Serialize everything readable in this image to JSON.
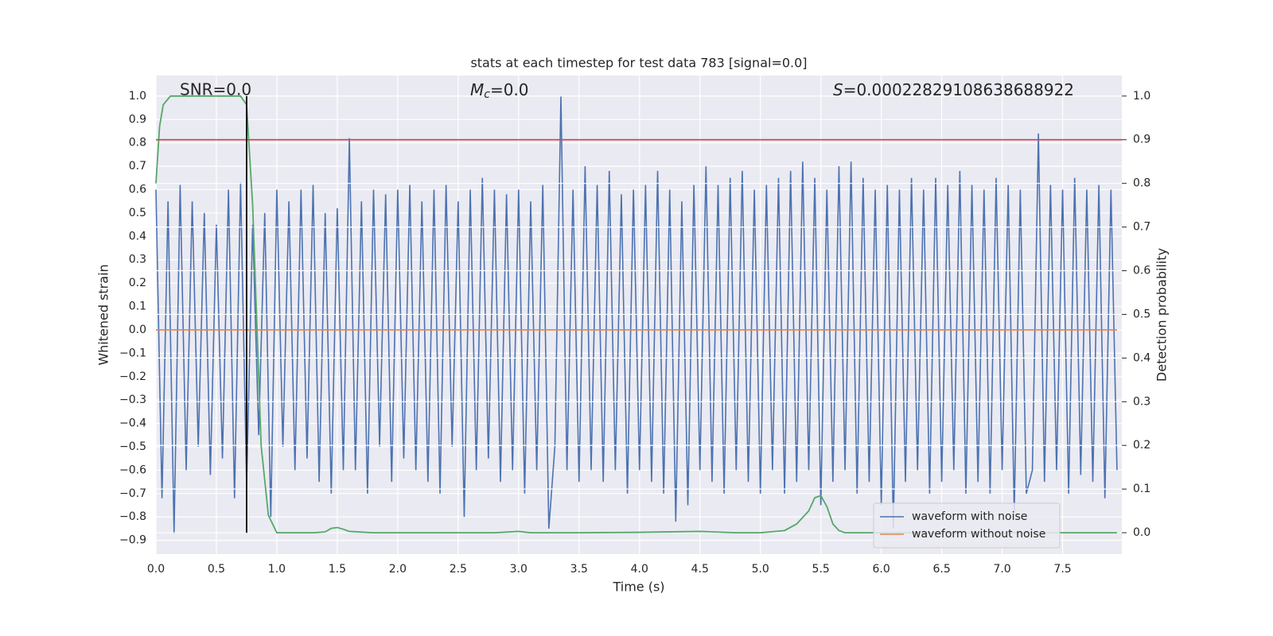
{
  "chart_data": {
    "type": "line",
    "title": "stats at each timestep for test data 783 [signal=0.0]",
    "xlabel": "Time (s)",
    "ylabel": "Whitened strain",
    "y2label": "Detection probability",
    "annotations": [
      {
        "text": "SNR=0.0"
      },
      {
        "symbol": "M",
        "subscript": "c",
        "text": "=0.0"
      },
      {
        "symbol": "S",
        "text": "=0.00022829108638688922"
      }
    ],
    "xlim": [
      0,
      7.99
    ],
    "ylim": [
      -0.959,
      1.088
    ],
    "y2lim": [
      -0.049,
      1.047
    ],
    "xticks": [
      {
        "value": 0,
        "label": "0.0"
      },
      {
        "value": 0.5,
        "label": "0.5"
      },
      {
        "value": 1,
        "label": "1.0"
      },
      {
        "value": 1.5,
        "label": "1.5"
      },
      {
        "value": 2,
        "label": "2.0"
      },
      {
        "value": 2.5,
        "label": "2.5"
      },
      {
        "value": 3,
        "label": "3.0"
      },
      {
        "value": 3.5,
        "label": "3.5"
      },
      {
        "value": 4,
        "label": "4.0"
      },
      {
        "value": 4.5,
        "label": "4.5"
      },
      {
        "value": 5,
        "label": "5.0"
      },
      {
        "value": 5.5,
        "label": "5.5"
      },
      {
        "value": 6,
        "label": "6.0"
      },
      {
        "value": 6.5,
        "label": "6.5"
      },
      {
        "value": 7,
        "label": "7.0"
      },
      {
        "value": 7.5,
        "label": "7.5"
      }
    ],
    "yticks": [
      {
        "value": -0.9,
        "label": "−0.9"
      },
      {
        "value": -0.8,
        "label": "−0.8"
      },
      {
        "value": -0.7,
        "label": "−0.7"
      },
      {
        "value": -0.6,
        "label": "−0.6"
      },
      {
        "value": -0.5,
        "label": "−0.5"
      },
      {
        "value": -0.4,
        "label": "−0.4"
      },
      {
        "value": -0.3,
        "label": "−0.3"
      },
      {
        "value": -0.2,
        "label": "−0.2"
      },
      {
        "value": -0.1,
        "label": "−0.1"
      },
      {
        "value": 0,
        "label": "0.0"
      },
      {
        "value": 0.1,
        "label": "0.1"
      },
      {
        "value": 0.2,
        "label": "0.2"
      },
      {
        "value": 0.3,
        "label": "0.3"
      },
      {
        "value": 0.4,
        "label": "0.4"
      },
      {
        "value": 0.5,
        "label": "0.5"
      },
      {
        "value": 0.6,
        "label": "0.6"
      },
      {
        "value": 0.7,
        "label": "0.7"
      },
      {
        "value": 0.8,
        "label": "0.8"
      },
      {
        "value": 0.9,
        "label": "0.9"
      },
      {
        "value": 1,
        "label": "1.0"
      }
    ],
    "y2ticks": [
      {
        "value": 0,
        "label": "0.0"
      },
      {
        "value": 0.1,
        "label": "0.1"
      },
      {
        "value": 0.2,
        "label": "0.2"
      },
      {
        "value": 0.3,
        "label": "0.3"
      },
      {
        "value": 0.4,
        "label": "0.4"
      },
      {
        "value": 0.5,
        "label": "0.5"
      },
      {
        "value": 0.6,
        "label": "0.6"
      },
      {
        "value": 0.7,
        "label": "0.7"
      },
      {
        "value": 0.8,
        "label": "0.8"
      },
      {
        "value": 0.9,
        "label": "0.9"
      },
      {
        "value": 1,
        "label": "1.0"
      }
    ],
    "grid": true,
    "legend": "lower right",
    "series": [
      {
        "name": "waveform with noise",
        "color": "#4c72b0",
        "x": [
          0,
          0.05,
          0.1,
          0.15,
          0.2,
          0.25,
          0.3,
          0.35,
          0.4,
          0.45,
          0.5,
          0.55,
          0.6,
          0.65,
          0.7,
          0.75,
          0.8,
          0.85,
          0.9,
          0.95,
          1,
          1.05,
          1.1,
          1.15,
          1.2,
          1.25,
          1.3,
          1.35,
          1.4,
          1.45,
          1.5,
          1.55,
          1.6,
          1.65,
          1.7,
          1.75,
          1.8,
          1.85,
          1.9,
          1.95,
          2,
          2.05,
          2.1,
          2.15,
          2.2,
          2.25,
          2.3,
          2.35,
          2.4,
          2.45,
          2.5,
          2.55,
          2.6,
          2.65,
          2.7,
          2.75,
          2.8,
          2.85,
          2.9,
          2.95,
          3,
          3.05,
          3.1,
          3.15,
          3.2,
          3.25,
          3.3,
          3.35,
          3.4,
          3.45,
          3.5,
          3.55,
          3.6,
          3.65,
          3.7,
          3.75,
          3.8,
          3.85,
          3.9,
          3.95,
          4,
          4.05,
          4.1,
          4.15,
          4.2,
          4.25,
          4.3,
          4.35,
          4.4,
          4.45,
          4.5,
          4.55,
          4.6,
          4.65,
          4.7,
          4.75,
          4.8,
          4.85,
          4.9,
          4.95,
          5,
          5.05,
          5.1,
          5.15,
          5.2,
          5.25,
          5.3,
          5.35,
          5.4,
          5.45,
          5.5,
          5.55,
          5.6,
          5.65,
          5.7,
          5.75,
          5.8,
          5.85,
          5.9,
          5.95,
          6,
          6.05,
          6.1,
          6.15,
          6.2,
          6.25,
          6.3,
          6.35,
          6.4,
          6.45,
          6.5,
          6.55,
          6.6,
          6.65,
          6.7,
          6.75,
          6.8,
          6.85,
          6.9,
          6.95,
          7,
          7.05,
          7.1,
          7.15,
          7.2,
          7.25,
          7.3,
          7.35,
          7.4,
          7.45,
          7.5,
          7.55,
          7.6,
          7.65,
          7.7,
          7.75,
          7.8,
          7.85,
          7.9,
          7.95
        ],
        "values": [
          0.6,
          -0.72,
          0.55,
          -0.87,
          0.62,
          -0.6,
          0.55,
          -0.5,
          0.5,
          -0.62,
          0.45,
          -0.55,
          0.6,
          -0.72,
          0.63,
          -0.66,
          0.45,
          -0.45,
          0.5,
          -0.8,
          0.6,
          -0.5,
          0.55,
          -0.6,
          0.6,
          -0.55,
          0.62,
          -0.65,
          0.5,
          -0.7,
          0.52,
          -0.6,
          0.82,
          -0.6,
          0.55,
          -0.7,
          0.6,
          -0.5,
          0.58,
          -0.65,
          0.6,
          -0.55,
          0.62,
          -0.6,
          0.55,
          -0.65,
          0.6,
          -0.7,
          0.62,
          -0.5,
          0.55,
          -0.8,
          0.6,
          -0.6,
          0.65,
          -0.55,
          0.6,
          -0.65,
          0.58,
          -0.6,
          0.6,
          -0.7,
          0.55,
          -0.6,
          0.62,
          -0.85,
          -0.5,
          1.0,
          -0.6,
          0.6,
          -0.65,
          0.7,
          -0.6,
          0.62,
          -0.65,
          0.68,
          -0.6,
          0.58,
          -0.7,
          0.6,
          -0.6,
          0.62,
          -0.65,
          0.68,
          -0.7,
          0.6,
          -0.82,
          0.55,
          -0.75,
          0.62,
          -0.6,
          0.7,
          -0.65,
          0.62,
          -0.7,
          0.65,
          -0.6,
          0.68,
          -0.65,
          0.6,
          -0.7,
          0.62,
          -0.6,
          0.65,
          -0.7,
          0.68,
          -0.65,
          0.72,
          -0.6,
          0.65,
          -0.75,
          0.6,
          -0.65,
          0.7,
          -0.6,
          0.72,
          -0.7,
          0.65,
          -0.65,
          0.6,
          -0.75,
          0.62,
          -0.85,
          0.6,
          -0.65,
          0.65,
          -0.6,
          0.6,
          -0.7,
          0.65,
          -0.65,
          0.62,
          -0.6,
          0.68,
          -0.7,
          0.62,
          -0.65,
          0.6,
          -0.7,
          0.65,
          -0.6,
          0.62,
          -0.78,
          0.6,
          -0.7,
          -0.6,
          0.84,
          -0.65,
          0.62,
          -0.6,
          0.6,
          -0.7,
          0.65,
          -0.62,
          0.6,
          -0.65,
          0.62,
          -0.72,
          0.6,
          -0.6
        ]
      },
      {
        "name": "waveform without noise",
        "color": "#dd8452",
        "x": [
          0,
          7.95
        ],
        "values": [
          0,
          0
        ]
      },
      {
        "color": "#55a868",
        "axis": "y2",
        "x": [
          0,
          0.03,
          0.06,
          0.12,
          0.2,
          0.3,
          0.4,
          0.5,
          0.6,
          0.7,
          0.75,
          0.8,
          0.87,
          0.93,
          1.0,
          1.1,
          1.2,
          1.3,
          1.4,
          1.45,
          1.5,
          1.55,
          1.6,
          1.8,
          2.0,
          2.5,
          2.8,
          3.0,
          3.1,
          3.5,
          4.0,
          4.5,
          4.6,
          4.8,
          5.0,
          5.2,
          5.3,
          5.4,
          5.45,
          5.5,
          5.55,
          5.6,
          5.65,
          5.7,
          6.0,
          7.0,
          7.95
        ],
        "values": [
          0.8,
          0.93,
          0.98,
          1.0,
          1.0,
          1.0,
          1.0,
          1.0,
          1.0,
          1.0,
          0.98,
          0.75,
          0.2,
          0.04,
          0,
          0,
          0,
          0,
          0.002,
          0.01,
          0.012,
          0.008,
          0.003,
          0,
          0,
          0,
          0,
          0.003,
          0,
          0,
          0.001,
          0.003,
          0.002,
          0,
          0,
          0.005,
          0.02,
          0.05,
          0.08,
          0.085,
          0.06,
          0.02,
          0.005,
          0,
          0,
          0,
          0
        ]
      },
      {
        "color": "#c44e52",
        "axis": "y2",
        "x": [
          0,
          7.99
        ],
        "values": [
          0.9,
          0.9
        ]
      },
      {
        "color": "#000000",
        "axis": "y2",
        "x": [
          0.75,
          0.75
        ],
        "values": [
          0,
          1
        ]
      }
    ]
  }
}
